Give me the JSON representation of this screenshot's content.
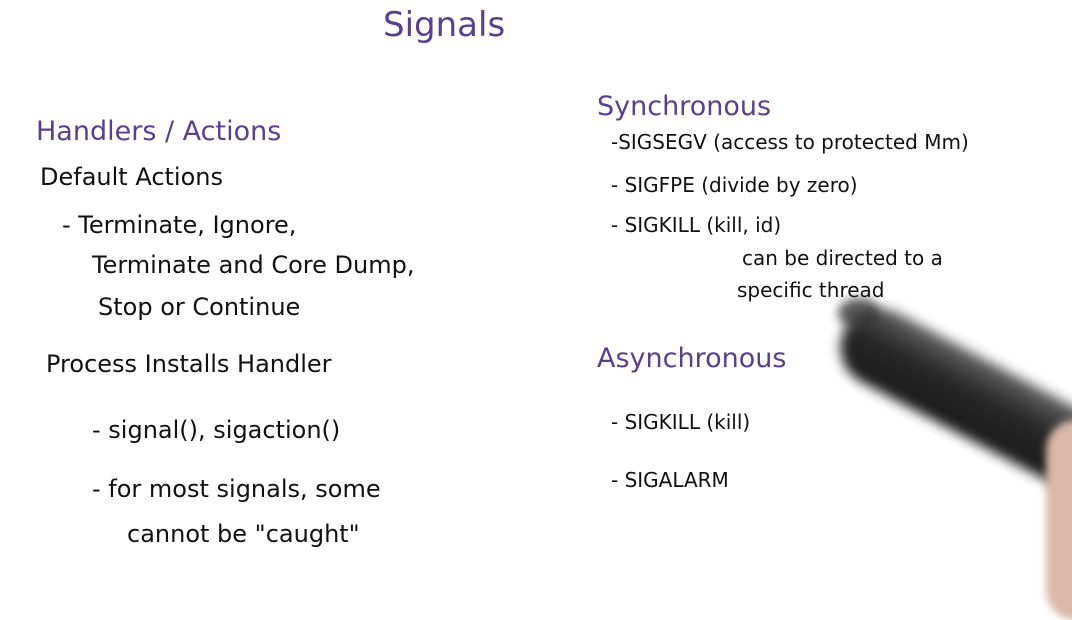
{
  "title": "Signals",
  "left": {
    "heading": "Handlers / Actions",
    "default_actions": "Default Actions",
    "actions_line1": "- Terminate, Ignore,",
    "actions_line2": "Terminate and Core Dump,",
    "actions_line3": "Stop or Continue",
    "process_installs": "Process Installs Handler",
    "install_item1": "- signal(), sigaction()",
    "install_item2_line1": "- for most signals, some",
    "install_item2_line2": "cannot be \"caught\""
  },
  "right": {
    "synchronous_heading": "Synchronous",
    "sync_items": [
      "-SIGSEGV (access to protected Mm)",
      "- SIGFPE (divide by zero)",
      "- SIGKILL (kill, id)"
    ],
    "sync_note_line1": "can be directed to a",
    "sync_note_line2": "specific thread",
    "asynchronous_heading": "Asynchronous",
    "async_items": [
      "- SIGKILL (kill)",
      "- SIGALARM"
    ]
  }
}
